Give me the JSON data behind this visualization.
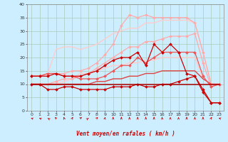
{
  "background_color": "#cceeff",
  "grid_color": "#aaccbb",
  "xlabel": "Vent moyen/en rafales ( km/h )",
  "xlim": [
    -0.5,
    23.5
  ],
  "ylim": [
    0,
    40
  ],
  "yticks": [
    0,
    5,
    10,
    15,
    20,
    25,
    30,
    35,
    40
  ],
  "xticks": [
    0,
    1,
    2,
    3,
    4,
    5,
    6,
    7,
    8,
    9,
    10,
    11,
    12,
    13,
    14,
    15,
    16,
    17,
    18,
    19,
    20,
    21,
    22,
    23
  ],
  "series": [
    {
      "x": [
        0,
        1,
        2,
        3,
        4,
        5,
        6,
        7,
        8,
        9,
        10,
        11,
        12,
        13,
        14,
        15,
        16,
        17,
        18,
        19,
        20,
        21,
        22,
        23
      ],
      "y": [
        13,
        13,
        14,
        23,
        24,
        24,
        23,
        24,
        25,
        27,
        29,
        30,
        31,
        31,
        33,
        33,
        34,
        34,
        34,
        34,
        33,
        22,
        10,
        10
      ],
      "color": "#ffcccc",
      "linewidth": 1.0,
      "marker": null,
      "alpha": 1.0
    },
    {
      "x": [
        0,
        1,
        2,
        3,
        4,
        5,
        6,
        7,
        8,
        9,
        10,
        11,
        12,
        13,
        14,
        15,
        16,
        17,
        18,
        19,
        20,
        21,
        22,
        23
      ],
      "y": [
        10,
        10,
        10,
        10,
        11,
        12,
        14,
        14,
        15,
        16,
        17,
        17,
        18,
        18,
        19,
        19,
        20,
        20,
        20,
        20,
        20,
        12,
        10,
        10
      ],
      "color": "#ffcccc",
      "linewidth": 1.0,
      "marker": null,
      "alpha": 1.0
    },
    {
      "x": [
        0,
        1,
        2,
        3,
        4,
        5,
        6,
        7,
        8,
        9,
        10,
        11,
        12,
        13,
        14,
        15,
        16,
        17,
        18,
        19,
        20,
        21,
        22,
        23
      ],
      "y": [
        13,
        13,
        14,
        14,
        14,
        15,
        15,
        16,
        18,
        21,
        25,
        32,
        36,
        35,
        36,
        35,
        35,
        35,
        35,
        35,
        33,
        22,
        10,
        10
      ],
      "color": "#ffaaaa",
      "linewidth": 0.9,
      "marker": "D",
      "markersize": 2.0,
      "alpha": 1.0
    },
    {
      "x": [
        0,
        1,
        2,
        3,
        4,
        5,
        6,
        7,
        8,
        9,
        10,
        11,
        12,
        13,
        14,
        15,
        16,
        17,
        18,
        19,
        20,
        21,
        22,
        23
      ],
      "y": [
        10,
        10,
        10,
        11,
        12,
        12,
        13,
        14,
        16,
        18,
        20,
        22,
        24,
        24,
        26,
        26,
        27,
        28,
        28,
        28,
        29,
        18,
        9,
        10
      ],
      "color": "#ffaaaa",
      "linewidth": 0.9,
      "marker": "D",
      "markersize": 2.0,
      "alpha": 1.0
    },
    {
      "x": [
        0,
        1,
        2,
        3,
        4,
        5,
        6,
        7,
        8,
        9,
        10,
        11,
        12,
        13,
        14,
        15,
        16,
        17,
        18,
        19,
        20,
        21,
        22,
        23
      ],
      "y": [
        10,
        10,
        10,
        10,
        10,
        10,
        10,
        10,
        11,
        11,
        12,
        12,
        13,
        13,
        14,
        14,
        15,
        15,
        15,
        15,
        15,
        12,
        10,
        10
      ],
      "color": "#dd4444",
      "linewidth": 1.0,
      "marker": null,
      "alpha": 1.0
    },
    {
      "x": [
        0,
        1,
        2,
        3,
        4,
        5,
        6,
        7,
        8,
        9,
        10,
        11,
        12,
        13,
        14,
        15,
        16,
        17,
        18,
        19,
        20,
        21,
        22,
        23
      ],
      "y": [
        13,
        13,
        14,
        14,
        13,
        13,
        12,
        12,
        12,
        13,
        15,
        17,
        17,
        20,
        18,
        20,
        22,
        22,
        22,
        22,
        22,
        13,
        9,
        10
      ],
      "color": "#ee5555",
      "linewidth": 0.9,
      "marker": "D",
      "markersize": 2.0,
      "alpha": 1.0
    },
    {
      "x": [
        0,
        1,
        2,
        3,
        4,
        5,
        6,
        7,
        8,
        9,
        10,
        11,
        12,
        13,
        14,
        15,
        16,
        17,
        18,
        19,
        20,
        21,
        22,
        23
      ],
      "y": [
        13,
        13,
        13,
        14,
        13,
        13,
        13,
        14,
        15,
        17,
        19,
        20,
        20,
        22,
        17,
        25,
        22,
        25,
        22,
        14,
        13,
        8,
        3,
        3
      ],
      "color": "#cc0000",
      "linewidth": 0.9,
      "marker": "D",
      "markersize": 2.0,
      "alpha": 1.0
    },
    {
      "x": [
        0,
        1,
        2,
        3,
        4,
        5,
        6,
        7,
        8,
        9,
        10,
        11,
        12,
        13,
        14,
        15,
        16,
        17,
        18,
        19,
        20,
        21,
        22,
        23
      ],
      "y": [
        10,
        10,
        8,
        8,
        9,
        9,
        8,
        8,
        8,
        8,
        9,
        9,
        9,
        10,
        9,
        9,
        10,
        10,
        11,
        12,
        13,
        7,
        3,
        3
      ],
      "color": "#cc0000",
      "linewidth": 0.9,
      "marker": "D",
      "markersize": 2.0,
      "alpha": 1.0
    },
    {
      "x": [
        0,
        1,
        2,
        3,
        4,
        5,
        6,
        7,
        8,
        9,
        10,
        11,
        12,
        13,
        14,
        15,
        16,
        17,
        18,
        19,
        20,
        21,
        22,
        23
      ],
      "y": [
        10,
        10,
        10,
        10,
        10,
        10,
        10,
        10,
        10,
        10,
        10,
        10,
        10,
        10,
        10,
        10,
        10,
        10,
        10,
        10,
        10,
        10,
        10,
        10
      ],
      "color": "#aa0000",
      "linewidth": 1.1,
      "marker": null,
      "alpha": 1.0
    }
  ],
  "wind_arrows": {
    "x": [
      0,
      1,
      2,
      3,
      4,
      5,
      6,
      7,
      8,
      9,
      10,
      11,
      12,
      13,
      14,
      15,
      16,
      17,
      18,
      19,
      20,
      21,
      22,
      23
    ],
    "angles_deg": [
      225,
      220,
      210,
      200,
      185,
      170,
      155,
      150,
      160,
      175,
      180,
      180,
      180,
      180,
      180,
      180,
      180,
      180,
      180,
      180,
      180,
      180,
      170,
      230
    ]
  }
}
